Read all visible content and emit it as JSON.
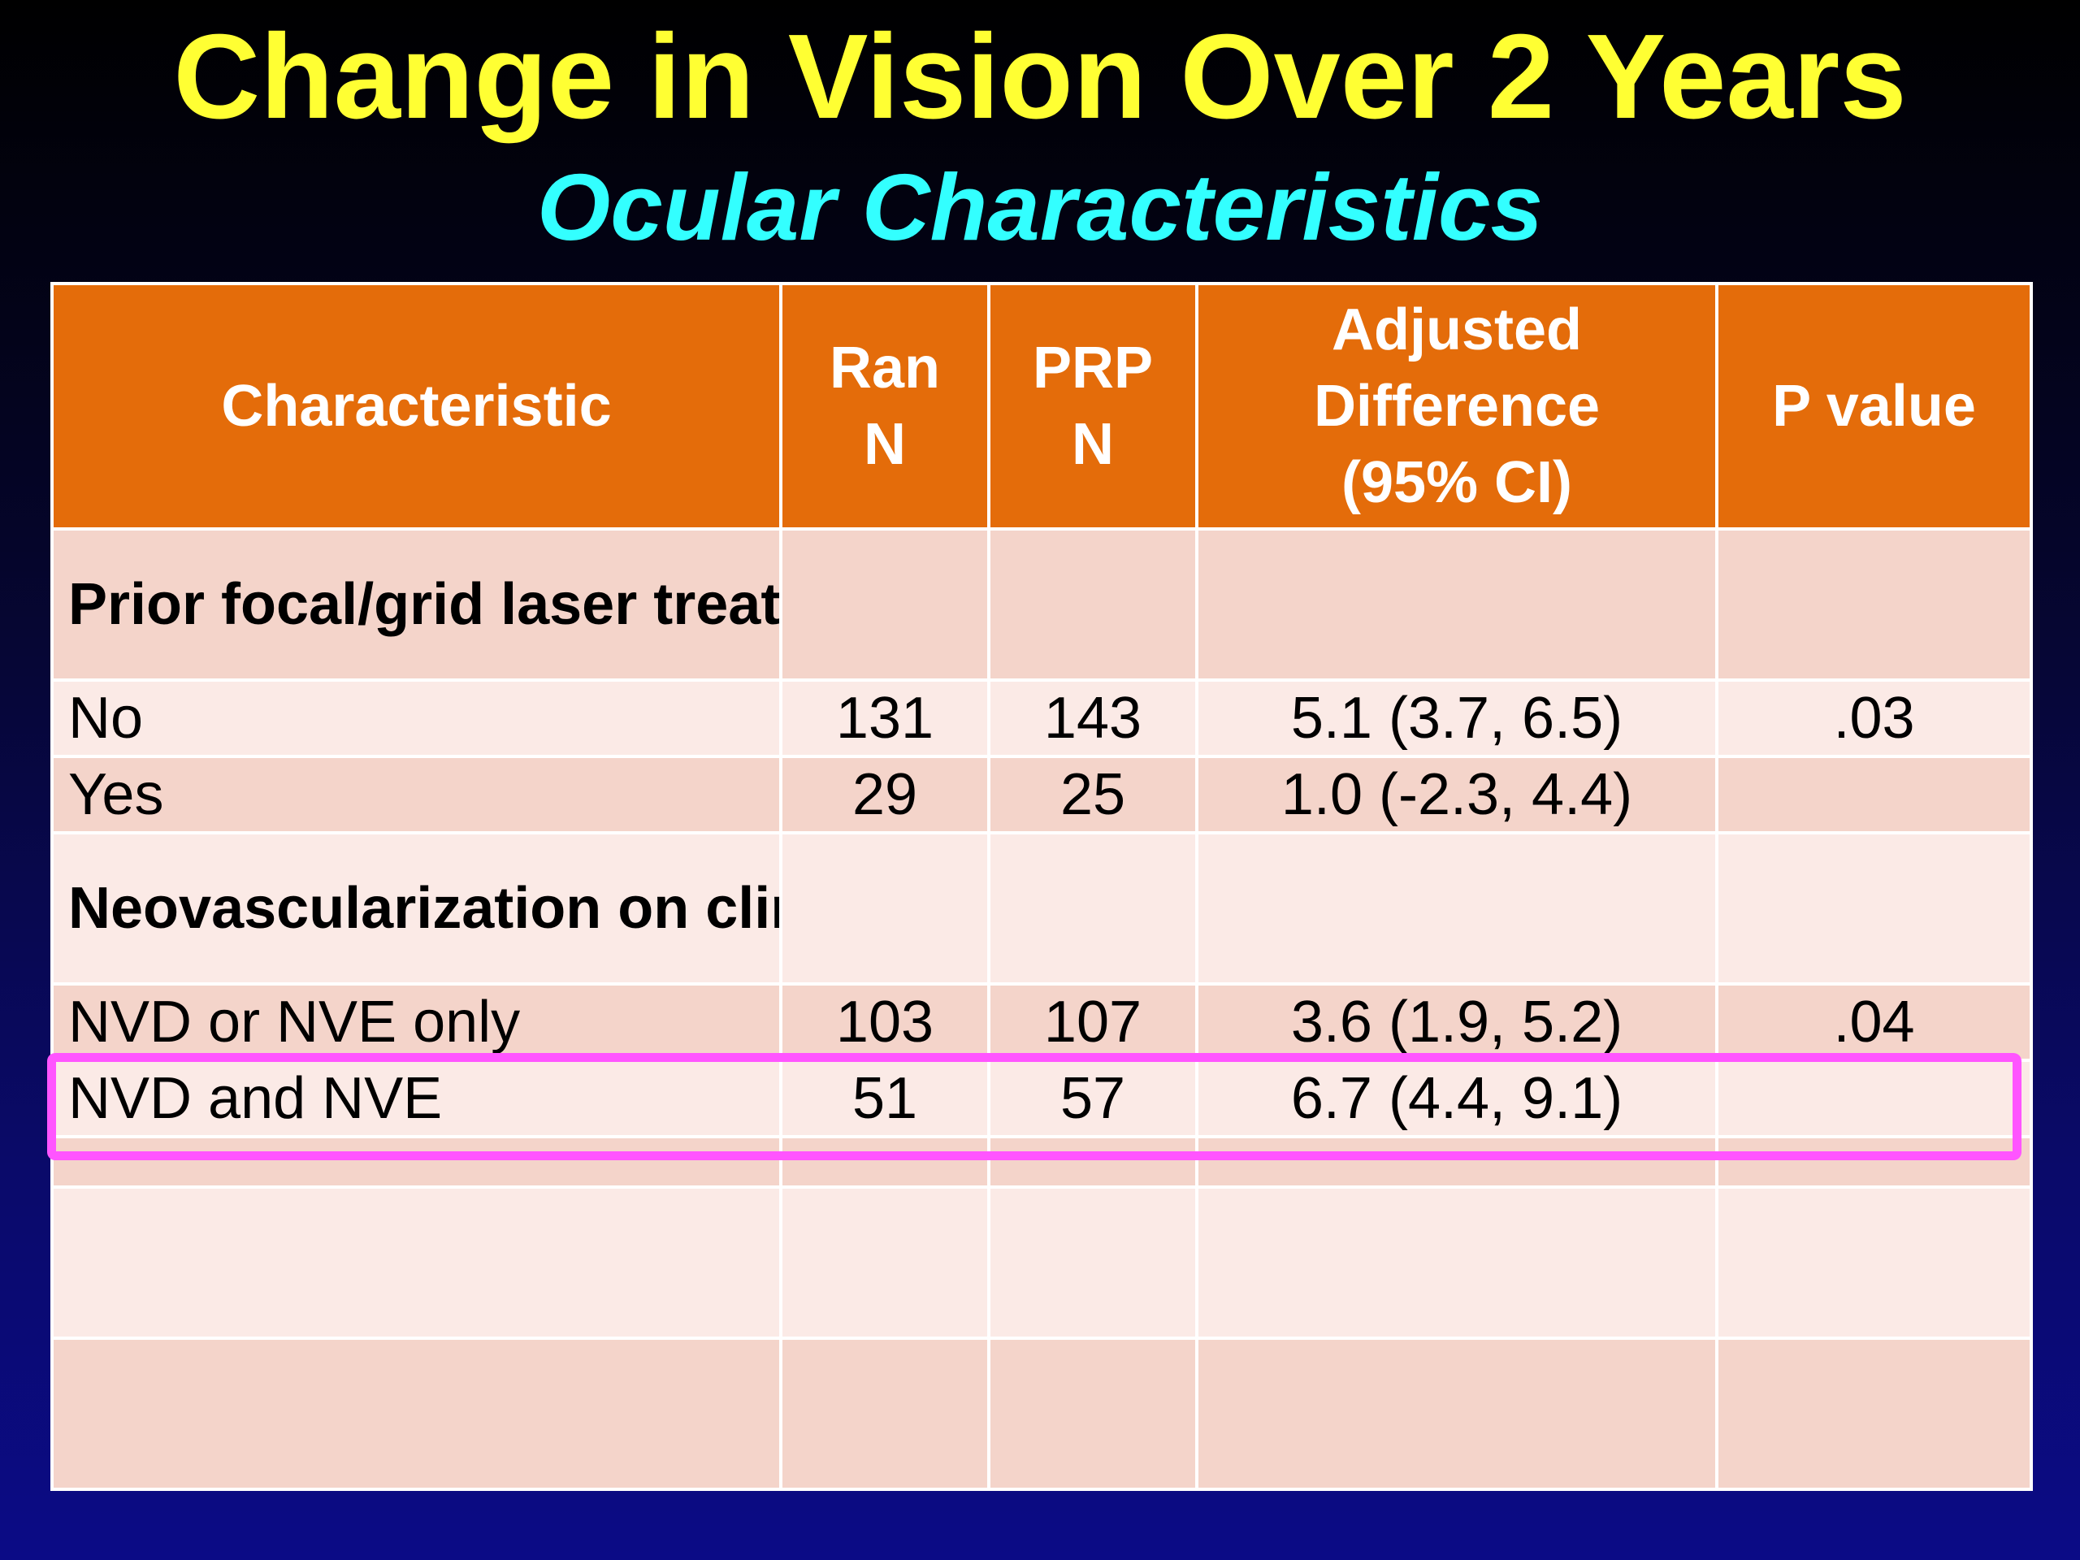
{
  "slide": {
    "title": "Change in Vision Over 2 Years",
    "subtitle": "Ocular Characteristics"
  },
  "table": {
    "headers": [
      [
        "Characteristic"
      ],
      [
        "Ran",
        "N"
      ],
      [
        "PRP",
        "N"
      ],
      [
        "Adjusted",
        "Difference",
        "(95% CI)"
      ],
      [
        "P value"
      ]
    ],
    "groups": [
      {
        "label": "Prior focal/grid laser treatment for DME",
        "rows": [
          {
            "label": "No",
            "ran_n": "131",
            "prp_n": "143",
            "adj_diff": "5.1 (3.7, 6.5)",
            "p_value": ".03"
          },
          {
            "label": "Yes",
            "ran_n": "29",
            "prp_n": "25",
            "adj_diff": "1.0 (-2.3, 4.4)",
            "p_value": ""
          }
        ]
      },
      {
        "label": "Neovascularization on clinical exam",
        "rows": [
          {
            "label": "NVD or NVE only",
            "ran_n": "103",
            "prp_n": "107",
            "adj_diff": "3.6 (1.9, 5.2)",
            "p_value": ".04"
          },
          {
            "label": "NVD and NVE",
            "ran_n": "51",
            "prp_n": "57",
            "adj_diff": "6.7 (4.4, 9.1)",
            "p_value": ""
          }
        ]
      }
    ]
  },
  "colors": {
    "title": "#ffff33",
    "subtitle": "#33ffff",
    "header_bg": "#e46c0a",
    "row_dark": "#f4d4ca",
    "row_light": "#fbeae6",
    "highlight": "#ff55ff"
  }
}
